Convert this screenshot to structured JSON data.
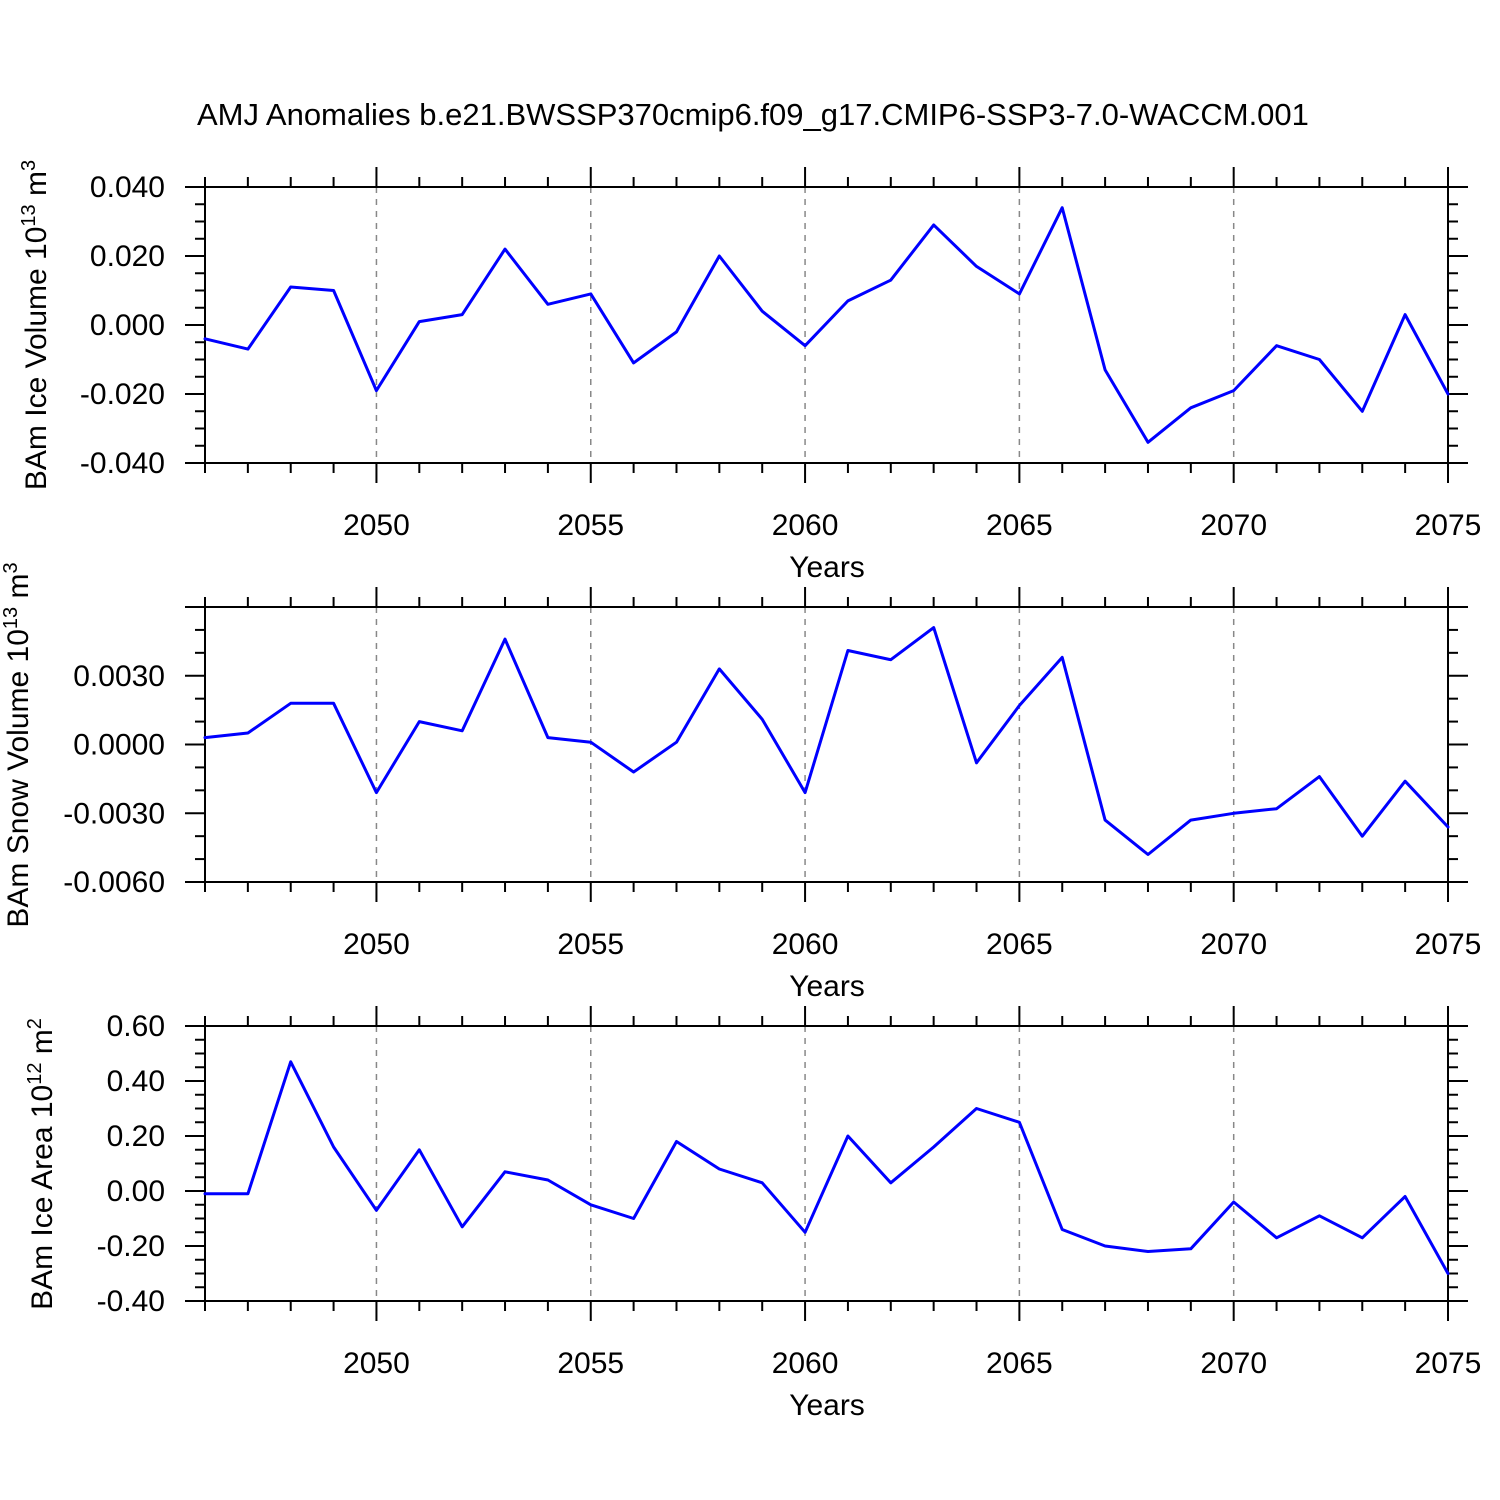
{
  "title": "AMJ Anomalies b.e21.BWSSP370cmip6.f09_g17.CMIP6-SSP3-7.0-WACCM.001",
  "chart_data": [
    {
      "type": "line",
      "name": "bam-ice-volume",
      "xlabel": "Years",
      "ylabel": "BAm Ice Volume 10^13 m^3",
      "ylabel_segments": [
        {
          "text": "BAm Ice Volume 10",
          "sup": false
        },
        {
          "text": "13",
          "sup": true
        },
        {
          "text": " m",
          "sup": false
        },
        {
          "text": "3",
          "sup": true
        }
      ],
      "line_color": "#0000ff",
      "xlim": [
        2046,
        2075
      ],
      "ylim": [
        -0.04,
        0.04
      ],
      "grid_years": [
        2050,
        2055,
        2060,
        2065,
        2070
      ],
      "xticks_labeled": [
        {
          "v": 2050,
          "t": "2050"
        },
        {
          "v": 2055,
          "t": "2055"
        },
        {
          "v": 2060,
          "t": "2060"
        },
        {
          "v": 2065,
          "t": "2065"
        },
        {
          "v": 2070,
          "t": "2070"
        },
        {
          "v": 2075,
          "t": "2075"
        }
      ],
      "yticks_labeled": [
        {
          "v": 0.04,
          "t": "0.040"
        },
        {
          "v": 0.02,
          "t": "0.020"
        },
        {
          "v": 0.0,
          "t": "0.000"
        },
        {
          "v": -0.02,
          "t": "-0.020"
        },
        {
          "v": -0.04,
          "t": "-0.040"
        }
      ],
      "ytick_major_step": 0.02,
      "ytick_minor_step": 0.005,
      "x": [
        2046,
        2047,
        2048,
        2049,
        2050,
        2051,
        2052,
        2053,
        2054,
        2055,
        2056,
        2057,
        2058,
        2059,
        2060,
        2061,
        2062,
        2063,
        2064,
        2065,
        2066,
        2067,
        2068,
        2069,
        2070,
        2071,
        2072,
        2073,
        2074,
        2075
      ],
      "values": [
        -0.004,
        -0.007,
        0.011,
        0.01,
        -0.019,
        0.001,
        0.003,
        0.022,
        0.006,
        0.009,
        -0.011,
        -0.002,
        0.02,
        0.004,
        -0.006,
        0.007,
        0.013,
        0.029,
        0.017,
        0.009,
        0.034,
        -0.013,
        -0.034,
        -0.024,
        -0.019,
        -0.006,
        -0.01,
        -0.025,
        0.003,
        -0.02
      ]
    },
    {
      "type": "line",
      "name": "bam-snow-volume",
      "xlabel": "Years",
      "ylabel": "BAm Snow Volume 10^13 m^3",
      "ylabel_segments": [
        {
          "text": "BAm Snow Volume 10",
          "sup": false
        },
        {
          "text": "13",
          "sup": true
        },
        {
          "text": " m",
          "sup": false
        },
        {
          "text": "3",
          "sup": true
        }
      ],
      "line_color": "#0000ff",
      "xlim": [
        2046,
        2075
      ],
      "ylim": [
        -0.006,
        0.006
      ],
      "grid_years": [
        2050,
        2055,
        2060,
        2065,
        2070
      ],
      "xticks_labeled": [
        {
          "v": 2050,
          "t": "2050"
        },
        {
          "v": 2055,
          "t": "2055"
        },
        {
          "v": 2060,
          "t": "2060"
        },
        {
          "v": 2065,
          "t": "2065"
        },
        {
          "v": 2070,
          "t": "2070"
        },
        {
          "v": 2075,
          "t": "2075"
        }
      ],
      "yticks_labeled": [
        {
          "v": 0.003,
          "t": "0.0030"
        },
        {
          "v": 0.0,
          "t": "0.0000"
        },
        {
          "v": -0.003,
          "t": "-0.0030"
        },
        {
          "v": -0.006,
          "t": "-0.0060"
        }
      ],
      "ytick_major_step": 0.003,
      "ytick_minor_step": 0.001,
      "x": [
        2046,
        2047,
        2048,
        2049,
        2050,
        2051,
        2052,
        2053,
        2054,
        2055,
        2056,
        2057,
        2058,
        2059,
        2060,
        2061,
        2062,
        2063,
        2064,
        2065,
        2066,
        2067,
        2068,
        2069,
        2070,
        2071,
        2072,
        2073,
        2074,
        2075
      ],
      "values": [
        0.0003,
        0.0005,
        0.0018,
        0.0018,
        -0.0021,
        0.001,
        0.0006,
        0.0046,
        0.0003,
        0.0001,
        -0.0012,
        0.0001,
        0.0033,
        0.0011,
        -0.0021,
        0.0041,
        0.0037,
        0.0051,
        -0.0008,
        0.0017,
        0.0038,
        -0.0033,
        -0.0048,
        -0.0033,
        -0.003,
        -0.0028,
        -0.0014,
        -0.004,
        -0.0016,
        -0.0036
      ]
    },
    {
      "type": "line",
      "name": "bam-ice-area",
      "xlabel": "Years",
      "ylabel": "BAm Ice Area 10^12 m^2",
      "ylabel_segments": [
        {
          "text": "BAm Ice Area 10",
          "sup": false
        },
        {
          "text": "12",
          "sup": true
        },
        {
          "text": " m",
          "sup": false
        },
        {
          "text": "2",
          "sup": true
        }
      ],
      "line_color": "#0000ff",
      "xlim": [
        2046,
        2075
      ],
      "ylim": [
        -0.4,
        0.6
      ],
      "grid_years": [
        2050,
        2055,
        2060,
        2065,
        2070
      ],
      "xticks_labeled": [
        {
          "v": 2050,
          "t": "2050"
        },
        {
          "v": 2055,
          "t": "2055"
        },
        {
          "v": 2060,
          "t": "2060"
        },
        {
          "v": 2065,
          "t": "2065"
        },
        {
          "v": 2070,
          "t": "2070"
        },
        {
          "v": 2075,
          "t": "2075"
        }
      ],
      "yticks_labeled": [
        {
          "v": 0.6,
          "t": "0.60"
        },
        {
          "v": 0.4,
          "t": "0.40"
        },
        {
          "v": 0.2,
          "t": "0.20"
        },
        {
          "v": 0.0,
          "t": "0.00"
        },
        {
          "v": -0.2,
          "t": "-0.20"
        },
        {
          "v": -0.4,
          "t": "-0.40"
        }
      ],
      "ytick_major_step": 0.2,
      "ytick_minor_step": 0.05,
      "x": [
        2046,
        2047,
        2048,
        2049,
        2050,
        2051,
        2052,
        2053,
        2054,
        2055,
        2056,
        2057,
        2058,
        2059,
        2060,
        2061,
        2062,
        2063,
        2064,
        2065,
        2066,
        2067,
        2068,
        2069,
        2070,
        2071,
        2072,
        2073,
        2074,
        2075
      ],
      "values": [
        -0.01,
        -0.01,
        0.47,
        0.16,
        -0.07,
        0.15,
        -0.13,
        0.07,
        0.04,
        -0.05,
        -0.1,
        0.18,
        0.08,
        0.03,
        -0.15,
        0.2,
        0.03,
        0.16,
        0.3,
        0.25,
        -0.14,
        -0.2,
        -0.22,
        -0.21,
        -0.04,
        -0.17,
        -0.09,
        -0.17,
        -0.02,
        -0.3
      ]
    }
  ],
  "style": {
    "axis_color": "#000000",
    "grid_color": "#888888",
    "background": "#ffffff"
  }
}
